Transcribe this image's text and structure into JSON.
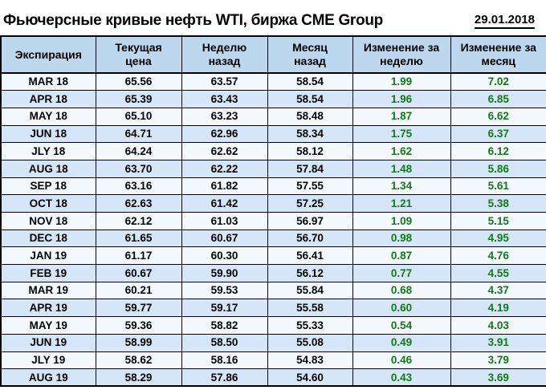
{
  "header": {
    "title": "Фьючерсные кривые нефть WTI, биржа CME Group",
    "date": "29.01.2018"
  },
  "table": {
    "headers": [
      "Экспирация",
      "Текущая\nцена",
      "Неделю\nназад",
      "Месяц\nназад",
      "Изменение за\nнеделю",
      "Изменение за\nмесяц"
    ]
  },
  "colors": {
    "page_bg": "#FFFFFF",
    "header_bg": "#BDD7EE",
    "row_light_bg": "#F3F8FD",
    "row_shade_bg": "#D4E6F8",
    "positive": "#147814",
    "border": "#000000"
  },
  "chart_data": {
    "type": "table",
    "title": "Фьючерсные кривые нефть WTI, биржа CME Group",
    "date": "29.01.2018",
    "columns": [
      "Экспирация",
      "Текущая цена",
      "Неделю назад",
      "Месяц назад",
      "Изменение за неделю",
      "Изменение за месяц"
    ],
    "rows": [
      [
        "MAR 18",
        65.56,
        63.57,
        58.54,
        1.99,
        7.02
      ],
      [
        "APR 18",
        65.39,
        63.43,
        58.54,
        1.96,
        6.85
      ],
      [
        "MAY 18",
        65.1,
        63.23,
        58.48,
        1.87,
        6.62
      ],
      [
        "JUN 18",
        64.71,
        62.96,
        58.34,
        1.75,
        6.37
      ],
      [
        "JLY 18",
        64.24,
        62.62,
        58.12,
        1.62,
        6.12
      ],
      [
        "AUG 18",
        63.7,
        62.22,
        57.84,
        1.48,
        5.86
      ],
      [
        "SEP 18",
        63.16,
        61.82,
        57.55,
        1.34,
        5.61
      ],
      [
        "OCT 18",
        62.63,
        61.42,
        57.25,
        1.21,
        5.38
      ],
      [
        "NOV 18",
        62.12,
        61.03,
        56.97,
        1.09,
        5.15
      ],
      [
        "DEC 18",
        61.65,
        60.67,
        56.7,
        0.98,
        4.95
      ],
      [
        "JAN 19",
        61.17,
        60.3,
        56.41,
        0.87,
        4.76
      ],
      [
        "FEB 19",
        60.67,
        59.9,
        56.12,
        0.77,
        4.55
      ],
      [
        "MAR 19",
        60.21,
        59.53,
        55.84,
        0.68,
        4.37
      ],
      [
        "APR 19",
        59.77,
        59.17,
        55.58,
        0.6,
        4.19
      ],
      [
        "MAY 19",
        59.36,
        58.82,
        55.33,
        0.54,
        4.03
      ],
      [
        "JUN 19",
        58.99,
        58.5,
        55.08,
        0.49,
        3.91
      ],
      [
        "JLY 19",
        58.62,
        58.16,
        54.83,
        0.46,
        3.79
      ],
      [
        "AUG 19",
        58.29,
        57.86,
        54.6,
        0.43,
        3.69
      ]
    ]
  }
}
